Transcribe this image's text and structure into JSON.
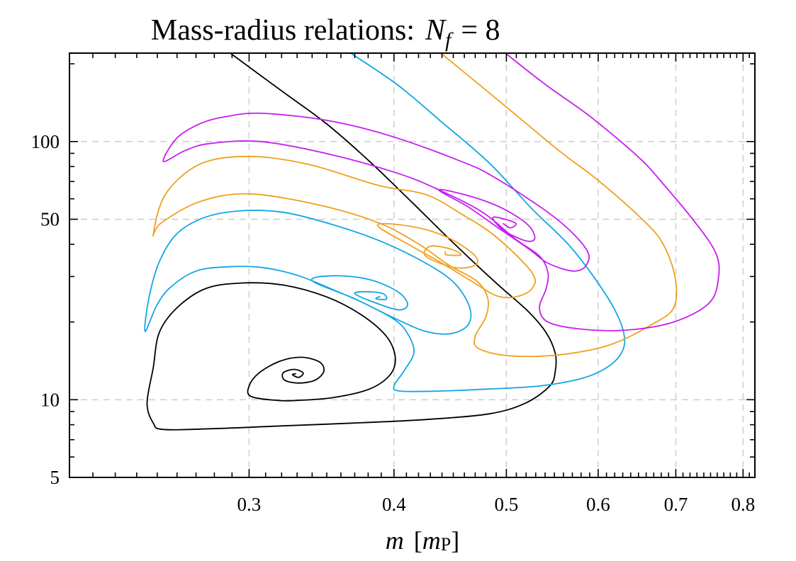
{
  "chart_data": {
    "type": "line",
    "title": "Mass-radius relations:",
    "title_math": {
      "symbol": "N",
      "subscript": "f",
      "equals": "= 8"
    },
    "xlabel": {
      "symbol": "m",
      "unit_symbol": "m",
      "unit_subscript": "P"
    },
    "ylabel": "",
    "xscale": "log",
    "yscale": "log",
    "xlim": [
      0.21,
      0.819
    ],
    "ylim": [
      5,
      220
    ],
    "xticks": [
      0.3,
      0.4,
      0.5,
      0.6,
      0.7,
      0.8
    ],
    "xtick_labels": [
      "0.3",
      "0.4",
      "0.5",
      "0.6",
      "0.7",
      "0.8"
    ],
    "yticks": [
      5,
      10,
      50,
      100
    ],
    "ytick_labels": [
      "5",
      "10",
      "50",
      "100"
    ],
    "xgrid": [
      0.3,
      0.4,
      0.5,
      0.6,
      0.7,
      0.8
    ],
    "ygrid": [
      10,
      50,
      100
    ],
    "grid": true,
    "legend": "none",
    "series": [
      {
        "name": "black",
        "color": "#000000",
        "points": [
          [
            0.289,
            220
          ],
          [
            0.321,
            155.5
          ],
          [
            0.35,
            117
          ],
          [
            0.381,
            83.8
          ],
          [
            0.414,
            58.5
          ],
          [
            0.451,
            40.1
          ],
          [
            0.49,
            28.3
          ],
          [
            0.522,
            22.0
          ],
          [
            0.541,
            18.2
          ],
          [
            0.551,
            15.1
          ],
          [
            0.551,
            12.9
          ],
          [
            0.545,
            11.3
          ],
          [
            0.519,
            9.69
          ],
          [
            0.483,
            8.81
          ],
          [
            0.426,
            8.38
          ],
          [
            0.37,
            8.12
          ],
          [
            0.321,
            7.92
          ],
          [
            0.279,
            7.72
          ],
          [
            0.253,
            7.67
          ],
          [
            0.248,
            8.12
          ],
          [
            0.245,
            9.69
          ],
          [
            0.248,
            13.3
          ],
          [
            0.251,
            18.2
          ],
          [
            0.26,
            22.7
          ],
          [
            0.275,
            26.9
          ],
          [
            0.295,
            28.3
          ],
          [
            0.321,
            27.8
          ],
          [
            0.35,
            25.0
          ],
          [
            0.375,
            21.3
          ],
          [
            0.394,
            17.6
          ],
          [
            0.401,
            14.6
          ],
          [
            0.397,
            12.5
          ],
          [
            0.381,
            11.0
          ],
          [
            0.355,
            10.2
          ],
          [
            0.331,
            9.94
          ],
          [
            0.317,
            9.94
          ],
          [
            0.301,
            10.3
          ],
          [
            0.3,
            11.3
          ],
          [
            0.306,
            12.7
          ],
          [
            0.319,
            14.1
          ],
          [
            0.333,
            14.6
          ],
          [
            0.345,
            14.0
          ],
          [
            0.348,
            12.9
          ],
          [
            0.342,
            11.9
          ],
          [
            0.331,
            11.6
          ],
          [
            0.322,
            11.9
          ],
          [
            0.321,
            12.7
          ],
          [
            0.328,
            13.1
          ],
          [
            0.334,
            12.7
          ],
          [
            0.331,
            12.2
          ],
          [
            0.327,
            12.5
          ],
          [
            0.329,
            12.6
          ]
        ]
      },
      {
        "name": "blue",
        "color": "#12a6e6",
        "points": [
          [
            0.367,
            220
          ],
          [
            0.403,
            165.6
          ],
          [
            0.438,
            120.8
          ],
          [
            0.483,
            82.8
          ],
          [
            0.526,
            54.9
          ],
          [
            0.565,
            40.1
          ],
          [
            0.597,
            29.2
          ],
          [
            0.621,
            22.0
          ],
          [
            0.632,
            17.6
          ],
          [
            0.628,
            15.1
          ],
          [
            0.61,
            13.3
          ],
          [
            0.581,
            12.1
          ],
          [
            0.534,
            11.3
          ],
          [
            0.483,
            11.0
          ],
          [
            0.438,
            10.8
          ],
          [
            0.405,
            10.8
          ],
          [
            0.4,
            11.3
          ],
          [
            0.408,
            12.9
          ],
          [
            0.416,
            15.1
          ],
          [
            0.413,
            17.3
          ],
          [
            0.403,
            20.0
          ],
          [
            0.381,
            23.1
          ],
          [
            0.355,
            26.6
          ],
          [
            0.331,
            30.2
          ],
          [
            0.308,
            32.5
          ],
          [
            0.287,
            32.7
          ],
          [
            0.27,
            31.5
          ],
          [
            0.257,
            27.4
          ],
          [
            0.25,
            23.4
          ],
          [
            0.244,
            18.4
          ],
          [
            0.246,
            25.0
          ],
          [
            0.251,
            34.2
          ],
          [
            0.26,
            44.0
          ],
          [
            0.275,
            50.9
          ],
          [
            0.295,
            53.9
          ],
          [
            0.321,
            53.2
          ],
          [
            0.355,
            47.5
          ],
          [
            0.391,
            40.8
          ],
          [
            0.426,
            33.8
          ],
          [
            0.451,
            28.3
          ],
          [
            0.465,
            22.7
          ],
          [
            0.463,
            19.4
          ],
          [
            0.447,
            18.0
          ],
          [
            0.426,
            18.4
          ],
          [
            0.403,
            20.4
          ],
          [
            0.37,
            24.6
          ],
          [
            0.34,
            28.9
          ],
          [
            0.355,
            30.2
          ],
          [
            0.381,
            29.2
          ],
          [
            0.403,
            26.2
          ],
          [
            0.411,
            23.4
          ],
          [
            0.403,
            22.3
          ],
          [
            0.381,
            24.2
          ],
          [
            0.37,
            25.8
          ],
          [
            0.378,
            26.2
          ],
          [
            0.391,
            25.8
          ],
          [
            0.394,
            24.5
          ],
          [
            0.386,
            24.6
          ],
          [
            0.389,
            25.1
          ]
        ]
      },
      {
        "name": "orange",
        "color": "#f0a01e",
        "points": [
          [
            0.439,
            220
          ],
          [
            0.499,
            137.1
          ],
          [
            0.557,
            91.0
          ],
          [
            0.597,
            72.0
          ],
          [
            0.65,
            51.6
          ],
          [
            0.681,
            40.8
          ],
          [
            0.699,
            29.8
          ],
          [
            0.697,
            22.7
          ],
          [
            0.668,
            19.6
          ],
          [
            0.614,
            16.3
          ],
          [
            0.554,
            14.9
          ],
          [
            0.502,
            14.8
          ],
          [
            0.473,
            15.8
          ],
          [
            0.47,
            17.6
          ],
          [
            0.48,
            20.9
          ],
          [
            0.482,
            24.6
          ],
          [
            0.472,
            28.7
          ],
          [
            0.446,
            33.2
          ],
          [
            0.42,
            40.1
          ],
          [
            0.388,
            48.4
          ],
          [
            0.345,
            56.7
          ],
          [
            0.3,
            62.7
          ],
          [
            0.272,
            58.5
          ],
          [
            0.252,
            48.4
          ],
          [
            0.248,
            43.5
          ],
          [
            0.254,
            62.3
          ],
          [
            0.272,
            81.7
          ],
          [
            0.3,
            87.6
          ],
          [
            0.337,
            81.7
          ],
          [
            0.388,
            67.6
          ],
          [
            0.426,
            62.3
          ],
          [
            0.457,
            52.5
          ],
          [
            0.49,
            42.7
          ],
          [
            0.526,
            31.1
          ],
          [
            0.526,
            26.9
          ],
          [
            0.509,
            25.0
          ],
          [
            0.49,
            25.3
          ],
          [
            0.467,
            28.7
          ],
          [
            0.438,
            34.2
          ],
          [
            0.411,
            40.1
          ],
          [
            0.387,
            47.5
          ],
          [
            0.414,
            46.9
          ],
          [
            0.444,
            42.7
          ],
          [
            0.469,
            36.4
          ],
          [
            0.47,
            33.2
          ],
          [
            0.451,
            32.5
          ],
          [
            0.426,
            36.0
          ],
          [
            0.43,
            39.3
          ],
          [
            0.448,
            38.3
          ],
          [
            0.457,
            36.4
          ],
          [
            0.444,
            36.4
          ],
          [
            0.443,
            37.4
          ]
        ]
      },
      {
        "name": "magenta",
        "color": "#c81ef0",
        "points": [
          [
            0.499,
            220
          ],
          [
            0.541,
            165.6
          ],
          [
            0.591,
            124.7
          ],
          [
            0.65,
            87.0
          ],
          [
            0.681,
            69.4
          ],
          [
            0.728,
            48.4
          ],
          [
            0.758,
            36.9
          ],
          [
            0.762,
            29.8
          ],
          [
            0.748,
            23.7
          ],
          [
            0.697,
            20.0
          ],
          [
            0.634,
            18.6
          ],
          [
            0.578,
            18.8
          ],
          [
            0.543,
            20.0
          ],
          [
            0.534,
            22.7
          ],
          [
            0.541,
            26.9
          ],
          [
            0.543,
            31.1
          ],
          [
            0.534,
            36.0
          ],
          [
            0.509,
            41.9
          ],
          [
            0.477,
            53.2
          ],
          [
            0.437,
            65.1
          ],
          [
            0.403,
            75.3
          ],
          [
            0.352,
            89.3
          ],
          [
            0.307,
            100
          ],
          [
            0.277,
            98.1
          ],
          [
            0.264,
            92.1
          ],
          [
            0.253,
            83.8
          ],
          [
            0.26,
            103.2
          ],
          [
            0.272,
            117.1
          ],
          [
            0.286,
            124.7
          ],
          [
            0.307,
            128.7
          ],
          [
            0.35,
            120.8
          ],
          [
            0.397,
            105.2
          ],
          [
            0.457,
            83.8
          ],
          [
            0.49,
            72.0
          ],
          [
            0.551,
            50.6
          ],
          [
            0.586,
            38.3
          ],
          [
            0.586,
            33.2
          ],
          [
            0.571,
            31.5
          ],
          [
            0.543,
            33.8
          ],
          [
            0.523,
            38.3
          ],
          [
            0.49,
            46.9
          ],
          [
            0.463,
            56.0
          ],
          [
            0.437,
            65.1
          ],
          [
            0.467,
            61.1
          ],
          [
            0.497,
            54.9
          ],
          [
            0.522,
            47.5
          ],
          [
            0.529,
            42.1
          ],
          [
            0.519,
            41.3
          ],
          [
            0.497,
            45.4
          ],
          [
            0.487,
            50.9
          ],
          [
            0.509,
            48.4
          ],
          [
            0.504,
            46.3
          ],
          [
            0.497,
            48.1
          ]
        ]
      }
    ]
  }
}
